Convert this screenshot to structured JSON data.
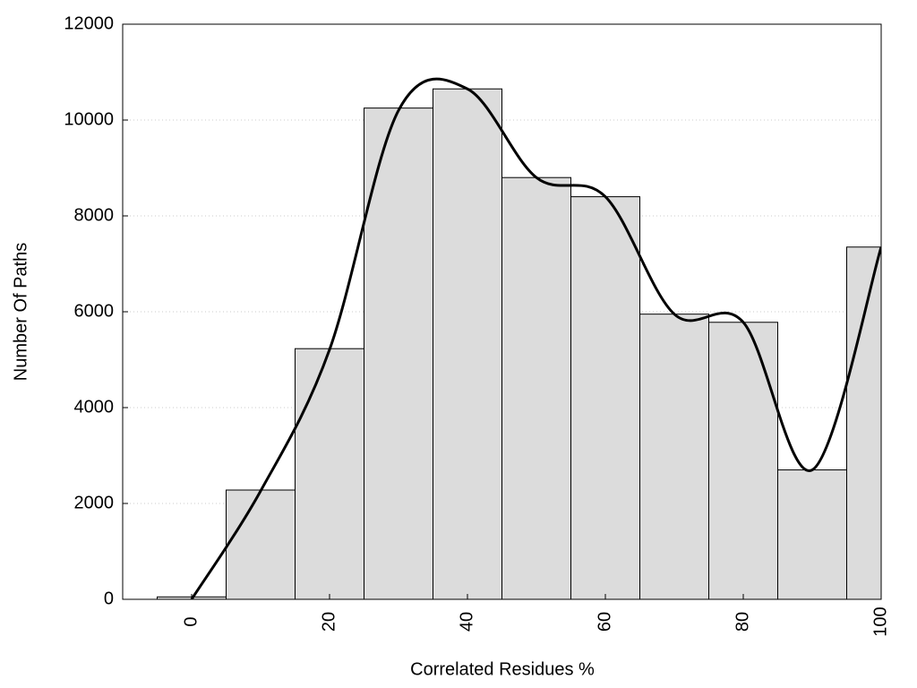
{
  "chart_data": {
    "type": "histogram",
    "xlabel": "Correlated Residues %",
    "ylabel": "Number Of Paths",
    "bins": [
      -5,
      5,
      15,
      25,
      35,
      45,
      55,
      65,
      75,
      85,
      95,
      105
    ],
    "values": [
      50,
      2280,
      5230,
      10250,
      10650,
      8800,
      8400,
      5950,
      5780,
      2700,
      7350
    ],
    "color": "#dcdcdc",
    "curve": {
      "x": [
        0,
        10,
        20,
        30,
        40,
        50,
        60,
        70,
        80,
        90,
        100
      ],
      "values": [
        0,
        2260,
        5210,
        10200,
        10650,
        8800,
        8400,
        5950,
        5780,
        2700,
        7350
      ],
      "color": "#000000"
    },
    "xlim": [
      -10,
      100
    ],
    "xticks": [
      0,
      20,
      40,
      60,
      80,
      100
    ],
    "ylim": [
      0,
      12000
    ],
    "yticks": [
      0,
      2000,
      4000,
      6000,
      8000,
      10000,
      12000
    ],
    "grid": true
  }
}
